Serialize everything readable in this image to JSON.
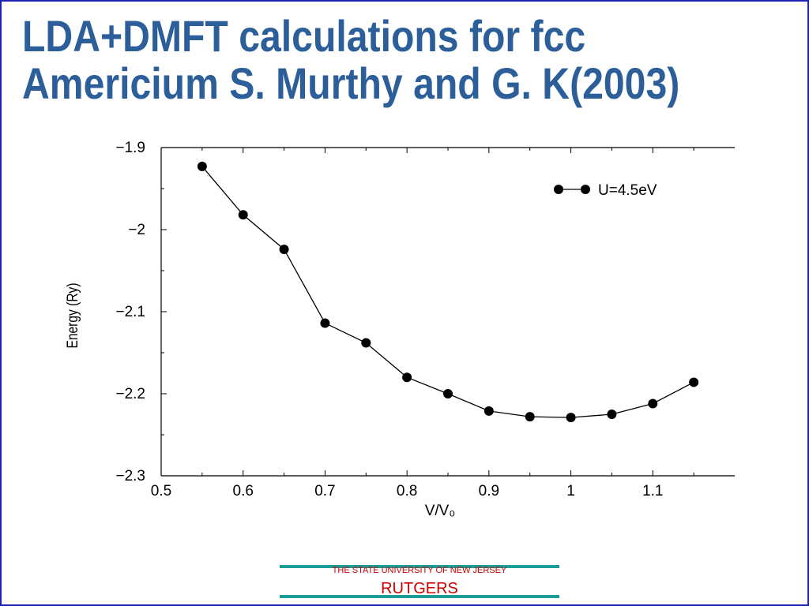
{
  "slide": {
    "title_line1": "LDA+DMFT calculations for fcc",
    "title_line2": "Americium S. Murthy and G. K(2003)",
    "footer_university": "THE STATE UNIVERSITY OF NEW JERSEY",
    "footer_name": "RUTGERS",
    "colors": {
      "title": "#2c5f9a",
      "border": "#1f1fb4",
      "footer_line": "#1a9e96",
      "footer_text": "#cc0000"
    }
  },
  "chart_data": {
    "type": "line",
    "title": "",
    "xlabel": "V/V₀",
    "ylabel": "Energy (Ry)",
    "xlim": [
      0.5,
      1.2
    ],
    "ylim": [
      -2.3,
      -1.9
    ],
    "xticks": [
      0.5,
      0.6,
      0.7,
      0.8,
      0.9,
      1,
      1.1
    ],
    "xtick_labels": [
      "0.5",
      "0.6",
      "0.7",
      "0.8",
      "0.9",
      "1",
      "1.1"
    ],
    "yticks": [
      -1.9,
      -2,
      -2.1,
      -2.2,
      -2.3
    ],
    "ytick_labels": [
      "−1.9",
      "−2",
      "−2.1",
      "−2.2",
      "−2.3"
    ],
    "grid": false,
    "legend_position": "top-right",
    "series": [
      {
        "name": "U=4.5eV",
        "color": "#000000",
        "marker": "circle",
        "x": [
          0.55,
          0.6,
          0.65,
          0.7,
          0.75,
          0.8,
          0.85,
          0.9,
          0.95,
          1.0,
          1.05,
          1.1,
          1.15
        ],
        "y": [
          -1.923,
          -1.982,
          -2.024,
          -2.114,
          -2.138,
          -2.18,
          -2.2,
          -2.221,
          -2.228,
          -2.229,
          -2.225,
          -2.212,
          -2.186
        ]
      }
    ]
  }
}
